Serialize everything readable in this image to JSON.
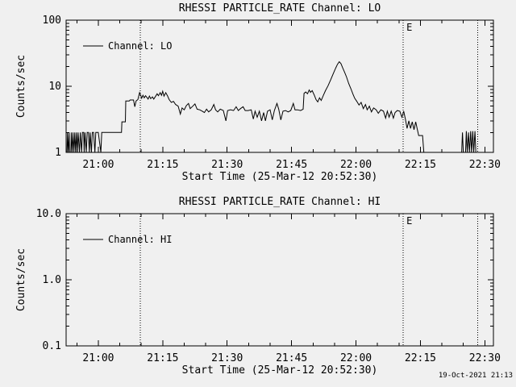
{
  "page": {
    "bg": "#f0f0f0",
    "fg": "#000000",
    "timestamp": "19-Oct-2021 21:13"
  },
  "chart_data": [
    {
      "type": "line",
      "title": "RHESSI PARTICLE_RATE Channel: LO",
      "xlabel": "Start Time (25-Mar-12 20:52:30)",
      "ylabel": "Counts/sec",
      "yscale": "log",
      "ylim": [
        1,
        100
      ],
      "yticks": [
        {
          "v": 1,
          "label": "1"
        },
        {
          "v": 10,
          "label": "10"
        },
        {
          "v": 100,
          "label": "100"
        }
      ],
      "x_minutes_range": [
        -7.5,
        92
      ],
      "x_minor_step": 5,
      "xticks": [
        {
          "t": 0,
          "label": "21:00"
        },
        {
          "t": 15,
          "label": "21:15"
        },
        {
          "t": 30,
          "label": "21:30"
        },
        {
          "t": 45,
          "label": "21:45"
        },
        {
          "t": 60,
          "label": "22:00"
        },
        {
          "t": 75,
          "label": "22:15"
        },
        {
          "t": 90,
          "label": "22:30"
        }
      ],
      "legend": {
        "label": "Channel: LO"
      },
      "grid": false,
      "event_lines": [
        {
          "t": 9.8,
          "label": ""
        },
        {
          "t": 71.0,
          "label": "E"
        },
        {
          "t": 88.3,
          "label": ""
        }
      ],
      "series": [
        {
          "name": "Channel: LO",
          "points": [
            [
              -7.3,
              1
            ],
            [
              -7.2,
              2
            ],
            [
              -7.0,
              1
            ],
            [
              -6.8,
              2
            ],
            [
              -6.7,
              1
            ],
            [
              -6.4,
              1
            ],
            [
              -6.3,
              2
            ],
            [
              -6.1,
              1
            ],
            [
              -5.9,
              2
            ],
            [
              -5.7,
              1
            ],
            [
              -5.5,
              2
            ],
            [
              -5.3,
              1
            ],
            [
              -5.1,
              2
            ],
            [
              -4.9,
              1
            ],
            [
              -4.7,
              2
            ],
            [
              -4.4,
              1
            ],
            [
              -4.2,
              2
            ],
            [
              -3.9,
              1
            ],
            [
              -3.7,
              2
            ],
            [
              -3.4,
              2
            ],
            [
              -3.3,
              1
            ],
            [
              -3.1,
              2
            ],
            [
              -2.8,
              1
            ],
            [
              -2.6,
              2
            ],
            [
              -2.3,
              2
            ],
            [
              -2.1,
              1
            ],
            [
              -1.9,
              2
            ],
            [
              -1.6,
              1
            ],
            [
              -1.4,
              2
            ],
            [
              -1.1,
              2
            ],
            [
              -0.8,
              1
            ],
            [
              -0.6,
              2
            ],
            [
              0.0,
              2
            ],
            [
              0.6,
              1
            ],
            [
              0.8,
              2
            ],
            [
              1.0,
              2
            ],
            [
              5.4,
              2
            ],
            [
              5.5,
              2.9
            ],
            [
              6.3,
              2.9
            ],
            [
              6.4,
              6
            ],
            [
              7.2,
              6
            ],
            [
              7.4,
              6.2
            ],
            [
              8.2,
              6.2
            ],
            [
              8.5,
              4.9
            ],
            [
              8.8,
              6
            ],
            [
              9.2,
              6.3
            ],
            [
              9.6,
              8
            ],
            [
              9.9,
              7.2
            ],
            [
              10.1,
              6.6
            ],
            [
              10.4,
              7.3
            ],
            [
              10.7,
              6.7
            ],
            [
              11.0,
              7.2
            ],
            [
              11.3,
              6.8
            ],
            [
              11.6,
              6.4
            ],
            [
              11.9,
              7.1
            ],
            [
              12.2,
              6.5
            ],
            [
              12.6,
              6.9
            ],
            [
              12.9,
              6.4
            ],
            [
              13.3,
              7.0
            ],
            [
              13.7,
              7.7
            ],
            [
              14.0,
              7.2
            ],
            [
              14.4,
              8.0
            ],
            [
              14.7,
              7.3
            ],
            [
              15.0,
              8.4
            ],
            [
              15.3,
              7.1
            ],
            [
              15.7,
              8.0
            ],
            [
              16.1,
              7.2
            ],
            [
              16.5,
              6.3
            ],
            [
              17.0,
              5.7
            ],
            [
              17.5,
              5.9
            ],
            [
              18.0,
              5.3
            ],
            [
              18.6,
              5.0
            ],
            [
              19.1,
              3.8
            ],
            [
              19.5,
              4.7
            ],
            [
              20.0,
              4.4
            ],
            [
              20.5,
              5.1
            ],
            [
              21.0,
              5.5
            ],
            [
              21.4,
              4.6
            ],
            [
              22.0,
              5.0
            ],
            [
              22.5,
              5.4
            ],
            [
              23.0,
              4.5
            ],
            [
              23.6,
              4.4
            ],
            [
              24.2,
              4.2
            ],
            [
              24.7,
              4.0
            ],
            [
              25.2,
              4.5
            ],
            [
              25.7,
              4.1
            ],
            [
              26.3,
              4.4
            ],
            [
              26.9,
              5.3
            ],
            [
              27.3,
              4.4
            ],
            [
              27.8,
              4.1
            ],
            [
              28.4,
              4.5
            ],
            [
              29.1,
              4.3
            ],
            [
              29.7,
              3.0
            ],
            [
              30.1,
              4.3
            ],
            [
              30.8,
              4.4
            ],
            [
              31.5,
              4.3
            ],
            [
              32.1,
              4.9
            ],
            [
              32.6,
              4.3
            ],
            [
              33.1,
              4.6
            ],
            [
              33.7,
              4.9
            ],
            [
              34.2,
              4.3
            ],
            [
              34.9,
              4.3
            ],
            [
              35.6,
              4.4
            ],
            [
              36.1,
              3.2
            ],
            [
              36.5,
              4.2
            ],
            [
              37.0,
              3.4
            ],
            [
              37.5,
              4.2
            ],
            [
              38.0,
              3.0
            ],
            [
              38.5,
              4.0
            ],
            [
              38.9,
              3.0
            ],
            [
              39.4,
              4.2
            ],
            [
              40.0,
              4.4
            ],
            [
              40.5,
              3.1
            ],
            [
              41.0,
              4.3
            ],
            [
              41.6,
              5.5
            ],
            [
              42.0,
              4.5
            ],
            [
              42.5,
              3.1
            ],
            [
              43.0,
              4.2
            ],
            [
              43.6,
              4.3
            ],
            [
              44.2,
              4.1
            ],
            [
              44.8,
              4.3
            ],
            [
              45.4,
              5.5
            ],
            [
              45.8,
              4.4
            ],
            [
              46.4,
              4.4
            ],
            [
              47.1,
              4.3
            ],
            [
              47.7,
              4.5
            ],
            [
              47.9,
              7.8
            ],
            [
              48.3,
              8.2
            ],
            [
              48.7,
              7.7
            ],
            [
              49.1,
              8.8
            ],
            [
              49.4,
              8.1
            ],
            [
              49.8,
              8.6
            ],
            [
              50.3,
              7.3
            ],
            [
              50.7,
              6.3
            ],
            [
              51.1,
              5.8
            ],
            [
              51.5,
              6.7
            ],
            [
              51.9,
              6.1
            ],
            [
              52.4,
              7.3
            ],
            [
              52.9,
              8.6
            ],
            [
              53.5,
              10.2
            ],
            [
              54.1,
              12.5
            ],
            [
              54.7,
              15.5
            ],
            [
              55.3,
              19
            ],
            [
              55.7,
              21.5
            ],
            [
              56.1,
              23.5
            ],
            [
              56.5,
              22
            ],
            [
              56.9,
              19
            ],
            [
              57.4,
              16
            ],
            [
              57.8,
              13.8
            ],
            [
              58.3,
              11
            ],
            [
              58.8,
              9.2
            ],
            [
              59.3,
              7.6
            ],
            [
              59.7,
              6.6
            ],
            [
              60.2,
              5.9
            ],
            [
              60.7,
              5.2
            ],
            [
              61.2,
              5.7
            ],
            [
              61.7,
              4.6
            ],
            [
              62.2,
              5.3
            ],
            [
              62.6,
              4.4
            ],
            [
              63.1,
              5.0
            ],
            [
              63.6,
              4.1
            ],
            [
              64.1,
              4.7
            ],
            [
              64.7,
              4.4
            ],
            [
              65.2,
              3.9
            ],
            [
              65.8,
              4.4
            ],
            [
              66.4,
              4.2
            ],
            [
              66.9,
              3.3
            ],
            [
              67.3,
              4.2
            ],
            [
              67.7,
              3.4
            ],
            [
              68.2,
              4.2
            ],
            [
              68.7,
              3.3
            ],
            [
              69.1,
              4.0
            ],
            [
              69.6,
              4.3
            ],
            [
              70.2,
              4.2
            ],
            [
              70.7,
              3.4
            ],
            [
              71.1,
              4.2
            ],
            [
              71.5,
              3.2
            ],
            [
              71.9,
              2.3
            ],
            [
              72.3,
              3.0
            ],
            [
              72.7,
              2.3
            ],
            [
              73.1,
              2.9
            ],
            [
              73.5,
              2.2
            ],
            [
              73.9,
              2.9
            ],
            [
              74.3,
              2.2
            ],
            [
              74.6,
              1.8
            ],
            [
              75.5,
              1.8
            ],
            [
              75.8,
              1.0
            ],
            [
              84.4,
              1.0
            ],
            [
              84.6,
              1
            ],
            [
              84.8,
              2.0
            ],
            [
              85.0,
              1
            ],
            [
              85.5,
              1
            ],
            [
              85.7,
              2.1
            ],
            [
              85.9,
              1
            ],
            [
              86.2,
              2.0
            ],
            [
              86.4,
              1
            ],
            [
              86.7,
              2.1
            ],
            [
              86.9,
              1
            ],
            [
              87.2,
              2.1
            ],
            [
              87.4,
              1
            ],
            [
              87.7,
              2.1
            ],
            [
              87.9,
              1
            ],
            [
              88.2,
              1
            ]
          ]
        }
      ]
    },
    {
      "type": "line",
      "title": "RHESSI PARTICLE_RATE Channel: HI",
      "xlabel": "Start Time (25-Mar-12 20:52:30)",
      "ylabel": "Counts/sec",
      "yscale": "log",
      "ylim": [
        0.1,
        10.0
      ],
      "yticks": [
        {
          "v": 0.1,
          "label": "0.1"
        },
        {
          "v": 1.0,
          "label": "1.0"
        },
        {
          "v": 10.0,
          "label": "10.0"
        }
      ],
      "x_minutes_range": [
        -7.5,
        92
      ],
      "x_minor_step": 5,
      "xticks": [
        {
          "t": 0,
          "label": "21:00"
        },
        {
          "t": 15,
          "label": "21:15"
        },
        {
          "t": 30,
          "label": "21:30"
        },
        {
          "t": 45,
          "label": "21:45"
        },
        {
          "t": 60,
          "label": "22:00"
        },
        {
          "t": 75,
          "label": "22:15"
        },
        {
          "t": 90,
          "label": "22:30"
        }
      ],
      "legend": {
        "label": "Channel: HI"
      },
      "grid": false,
      "event_lines": [
        {
          "t": 9.8,
          "label": ""
        },
        {
          "t": 71.0,
          "label": "E"
        },
        {
          "t": 88.3,
          "label": ""
        }
      ],
      "series": [
        {
          "name": "Channel: HI",
          "points": []
        }
      ]
    }
  ]
}
